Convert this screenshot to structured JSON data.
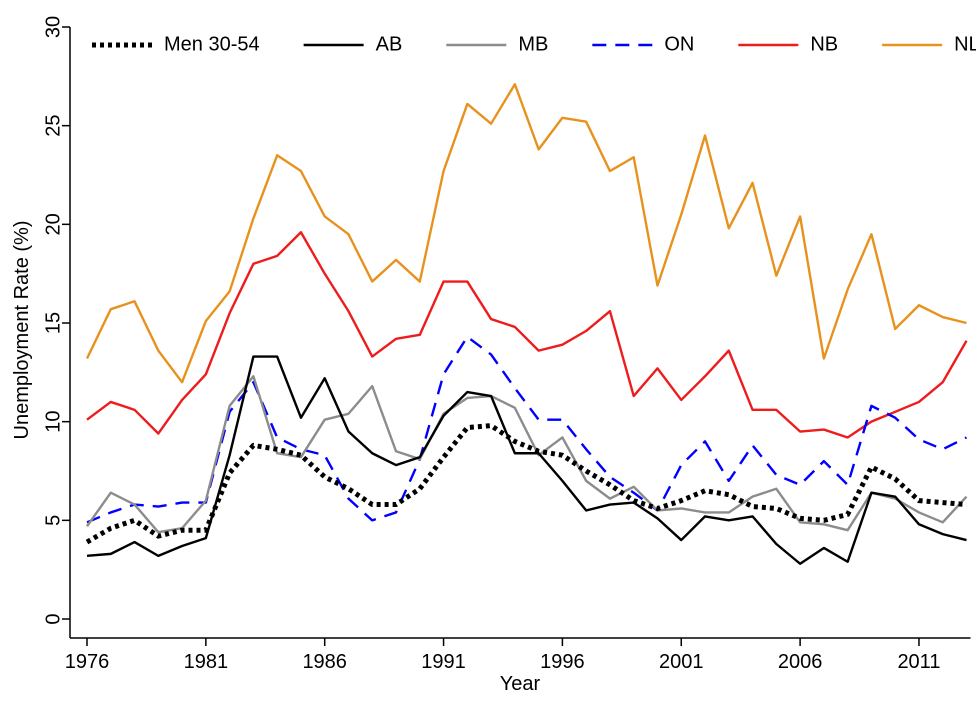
{
  "chart_data": {
    "type": "line",
    "x_label": "Year",
    "y_label": "Unemployment Rate (%)",
    "x": [
      1976,
      1977,
      1978,
      1979,
      1980,
      1981,
      1982,
      1983,
      1984,
      1985,
      1986,
      1987,
      1988,
      1989,
      1990,
      1991,
      1992,
      1993,
      1994,
      1995,
      1996,
      1997,
      1998,
      1999,
      2000,
      2001,
      2002,
      2003,
      2004,
      2005,
      2006,
      2007,
      2008,
      2009,
      2010,
      2011,
      2012,
      2013
    ],
    "xlim": [
      1976,
      2013
    ],
    "xticks": [
      1976,
      1981,
      1986,
      1991,
      1996,
      2001,
      2006,
      2011
    ],
    "ylim": [
      0,
      30
    ],
    "yticks": [
      0,
      5,
      10,
      15,
      20,
      25,
      30
    ],
    "legend": "top",
    "series": [
      {
        "name": "Men 30-54",
        "color": "#000000",
        "style": "dotted",
        "values": [
          3.9,
          4.6,
          5.0,
          4.2,
          4.5,
          4.5,
          7.4,
          8.8,
          8.6,
          8.3,
          7.2,
          6.6,
          5.8,
          5.8,
          6.6,
          8.2,
          9.7,
          9.8,
          9.0,
          8.5,
          8.3,
          7.5,
          6.8,
          6.0,
          5.6,
          6.0,
          6.5,
          6.3,
          5.7,
          5.6,
          5.1,
          5.0,
          5.3,
          7.7,
          7.1,
          6.0,
          5.9,
          5.8
        ]
      },
      {
        "name": "AB",
        "color": "#000000",
        "style": "solid",
        "values": [
          3.2,
          3.3,
          3.9,
          3.2,
          3.7,
          4.1,
          8.3,
          13.3,
          13.3,
          10.2,
          12.2,
          9.5,
          8.4,
          7.8,
          8.2,
          10.3,
          11.5,
          11.3,
          8.4,
          8.4,
          7.0,
          5.5,
          5.8,
          5.9,
          5.1,
          4.0,
          5.2,
          5.0,
          5.2,
          3.8,
          2.8,
          3.6,
          2.9,
          6.4,
          6.2,
          4.8,
          4.3,
          4.0
        ]
      },
      {
        "name": "MB",
        "color": "#8c8c8c",
        "style": "solid",
        "values": [
          4.7,
          6.4,
          5.8,
          4.4,
          4.6,
          6.0,
          10.8,
          12.3,
          8.4,
          8.2,
          10.1,
          10.4,
          11.8,
          8.5,
          8.1,
          10.4,
          11.2,
          11.3,
          10.7,
          8.3,
          9.2,
          7.0,
          6.1,
          6.7,
          5.5,
          5.6,
          5.4,
          5.4,
          6.2,
          6.6,
          4.9,
          4.8,
          4.5,
          6.4,
          6.1,
          5.4,
          4.9,
          6.2
        ]
      },
      {
        "name": "ON",
        "color": "#0000ff",
        "style": "dashed",
        "values": [
          4.9,
          5.4,
          5.8,
          5.7,
          5.9,
          5.9,
          10.5,
          12.0,
          9.2,
          8.6,
          8.3,
          6.1,
          5.0,
          5.4,
          8.1,
          12.4,
          14.3,
          13.4,
          11.7,
          10.1,
          10.1,
          8.6,
          7.2,
          6.4,
          5.5,
          7.8,
          9.0,
          7.0,
          8.8,
          7.3,
          6.8,
          8.0,
          6.8,
          10.8,
          10.2,
          9.1,
          8.6,
          9.2
        ]
      },
      {
        "name": "NB",
        "color": "#ee1c1c",
        "style": "solid",
        "values": [
          10.1,
          11.0,
          10.6,
          9.4,
          11.1,
          12.4,
          15.5,
          18.0,
          18.4,
          19.6,
          17.5,
          15.6,
          13.3,
          14.2,
          14.4,
          17.1,
          17.1,
          15.2,
          14.8,
          13.6,
          13.9,
          14.6,
          15.6,
          11.3,
          12.7,
          11.1,
          12.3,
          13.6,
          10.6,
          10.6,
          9.5,
          9.6,
          9.2,
          10.0,
          10.5,
          11.0,
          12.0,
          14.1
        ]
      },
      {
        "name": "NL",
        "color": "#e8921e",
        "style": "solid",
        "values": [
          13.2,
          15.7,
          16.1,
          13.6,
          12.0,
          15.1,
          16.6,
          20.3,
          23.5,
          22.7,
          20.4,
          19.5,
          17.1,
          18.2,
          17.1,
          22.7,
          26.1,
          25.1,
          27.1,
          23.8,
          25.4,
          25.2,
          22.7,
          23.4,
          16.9,
          20.5,
          24.5,
          19.8,
          22.1,
          17.4,
          20.4,
          13.2,
          16.7,
          19.5,
          14.7,
          15.9,
          15.3,
          15.0
        ]
      }
    ]
  }
}
